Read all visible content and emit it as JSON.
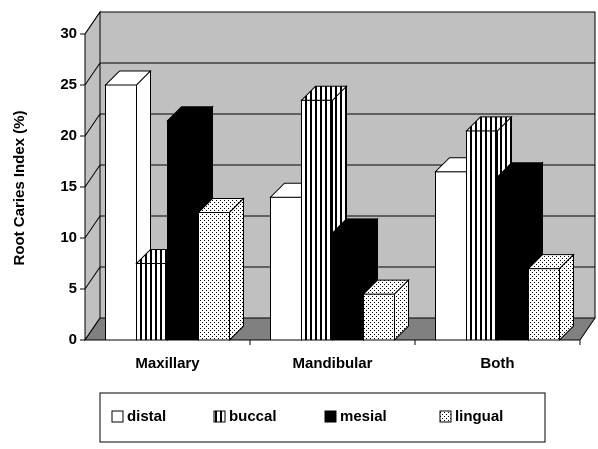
{
  "chart_data": {
    "type": "bar3d",
    "y_label": "Root Caries Index (%)",
    "categories": [
      "Maxillary",
      "Mandibular",
      "Both"
    ],
    "series": [
      {
        "name": "distal",
        "color": "#ffffff",
        "pattern": "solid",
        "values": [
          25,
          14,
          16.5
        ]
      },
      {
        "name": "buccal",
        "color": "#ffffff",
        "pattern": "vertical-lines",
        "values": [
          7.5,
          23.5,
          20.5
        ]
      },
      {
        "name": "mesial",
        "color": "#000000",
        "pattern": "solid",
        "values": [
          21.5,
          10.5,
          16
        ]
      },
      {
        "name": "lingual",
        "color": "#ffffff",
        "pattern": "dots",
        "values": [
          12.5,
          4.5,
          7
        ]
      }
    ],
    "ylim": [
      0,
      30
    ],
    "yticks": [
      0,
      5,
      10,
      15,
      20,
      25,
      30
    ],
    "grid": true,
    "legend": "bottom"
  }
}
